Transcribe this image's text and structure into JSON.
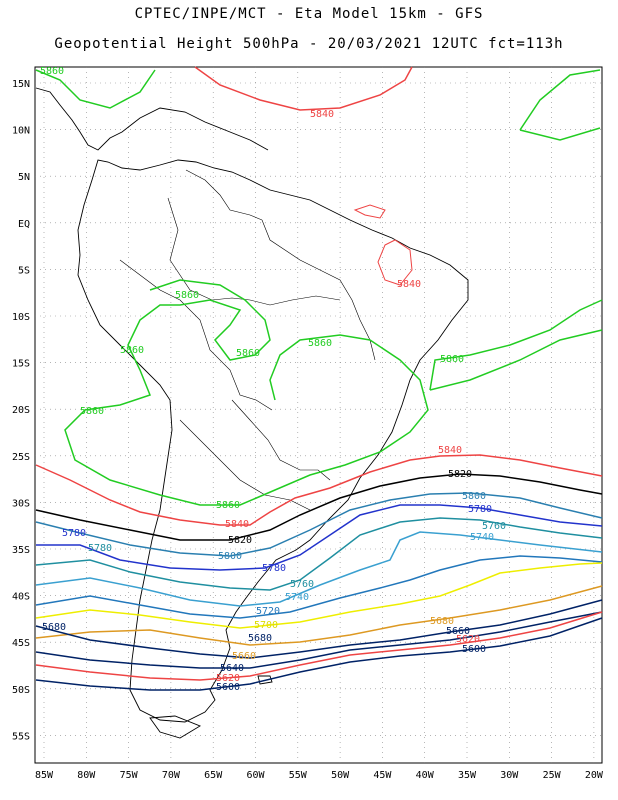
{
  "title_line1": "CPTEC/INPE/MCT -  Eta Model 15km - GFS",
  "title_line2": "Geopotential Height 500hPa - 20/03/2021 12UTC fct=113h",
  "latitude_labels": [
    "15N",
    "10N",
    "5N",
    "EQ",
    "5S",
    "10S",
    "15S",
    "20S",
    "25S",
    "30S",
    "35S",
    "40S",
    "45S",
    "50S",
    "55S"
  ],
  "longitude_labels": [
    "85W",
    "80W",
    "75W",
    "70W",
    "65W",
    "60W",
    "55W",
    "50W",
    "45W",
    "40W",
    "35W",
    "30W",
    "25W",
    "20W"
  ],
  "contour_levels": [
    {
      "value": "5860",
      "color": "#22cc22"
    },
    {
      "value": "5840",
      "color": "#ee4444"
    },
    {
      "value": "5820",
      "color": "#000000"
    },
    {
      "value": "5800",
      "color": "#2a7fb0"
    },
    {
      "value": "5780",
      "color": "#2233cc"
    },
    {
      "value": "5760",
      "color": "#1f8fa0"
    },
    {
      "value": "5740",
      "color": "#3aa0d0"
    },
    {
      "value": "5720",
      "color": "#2277bb"
    },
    {
      "value": "5700",
      "color": "#eeee00"
    },
    {
      "value": "5680",
      "color": "#dd9922"
    },
    {
      "value": "5660",
      "color": "#002266"
    },
    {
      "value": "5640",
      "color": "#002266"
    },
    {
      "value": "5620",
      "color": "#ee4444"
    },
    {
      "value": "5600",
      "color": "#002266"
    }
  ]
}
